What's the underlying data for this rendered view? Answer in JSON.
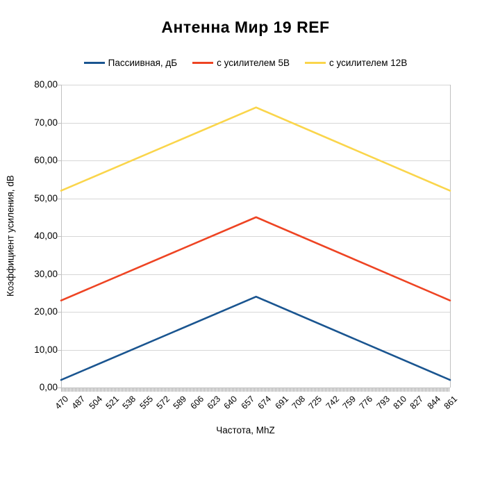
{
  "chart_data": {
    "type": "line",
    "title": "Антенна Мир 19 REF",
    "xlabel": "Частота, MhZ",
    "ylabel": "Коэффициент усиления, dB",
    "xlim": [
      470,
      861
    ],
    "ylim": [
      0,
      80
    ],
    "grid": true,
    "legend_position": "top",
    "background_color": "#FFFFFF",
    "grid_color": "#D6D6D6",
    "axis_line_color": "#C0C0C0",
    "minor_tick_color": "#A6A6A6",
    "x_tick_labels": [
      "470",
      "487",
      "504",
      "521",
      "538",
      "555",
      "572",
      "589",
      "606",
      "623",
      "640",
      "657",
      "674",
      "691",
      "708",
      "725",
      "742",
      "759",
      "776",
      "793",
      "810",
      "827",
      "844",
      "861"
    ],
    "y_tick_labels": [
      "0,00",
      "10,00",
      "20,00",
      "30,00",
      "40,00",
      "50,00",
      "60,00",
      "70,00",
      "80,00"
    ],
    "series": [
      {
        "name": "Пассиивная, дБ",
        "color": "#1A5590",
        "x": [
          470,
          666,
          861
        ],
        "values": [
          2,
          24,
          2
        ]
      },
      {
        "name": "с усилителем 5В",
        "color": "#EE4423",
        "x": [
          470,
          666,
          861
        ],
        "values": [
          23,
          45,
          23
        ]
      },
      {
        "name": "с усилителем 12В",
        "color": "#FAD54B",
        "x": [
          470,
          666,
          861
        ],
        "values": [
          52,
          74,
          52
        ]
      }
    ]
  }
}
